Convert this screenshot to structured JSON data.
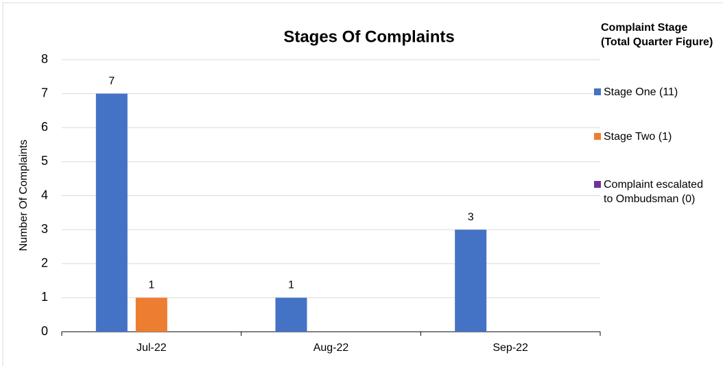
{
  "chart_data": {
    "type": "bar",
    "title": "Stages Of Complaints",
    "y_label": "Number Of Complaints",
    "legend_title": "Complaint Stage (Total Quarter Figure)",
    "legend_position": "right",
    "categories": [
      "Jul-22",
      "Aug-22",
      "Sep-22"
    ],
    "series": [
      {
        "name": "Stage One (11)",
        "color": "#4472c4",
        "values": [
          7,
          1,
          3
        ],
        "value_labels": [
          "7",
          "1",
          "3"
        ]
      },
      {
        "name": "Stage Two (1)",
        "color": "#ed7d31",
        "values": [
          1,
          0,
          0
        ],
        "value_labels": [
          "1",
          null,
          null
        ]
      },
      {
        "name": "Complaint escalated to Ombudsman (0)",
        "color": "#7030a0",
        "values": [
          0,
          0,
          0
        ],
        "value_labels": [
          null,
          null,
          null
        ]
      }
    ],
    "ylim": [
      0,
      8
    ],
    "yticks": [
      0,
      1,
      2,
      3,
      4,
      5,
      6,
      7,
      8
    ],
    "grid": true
  }
}
